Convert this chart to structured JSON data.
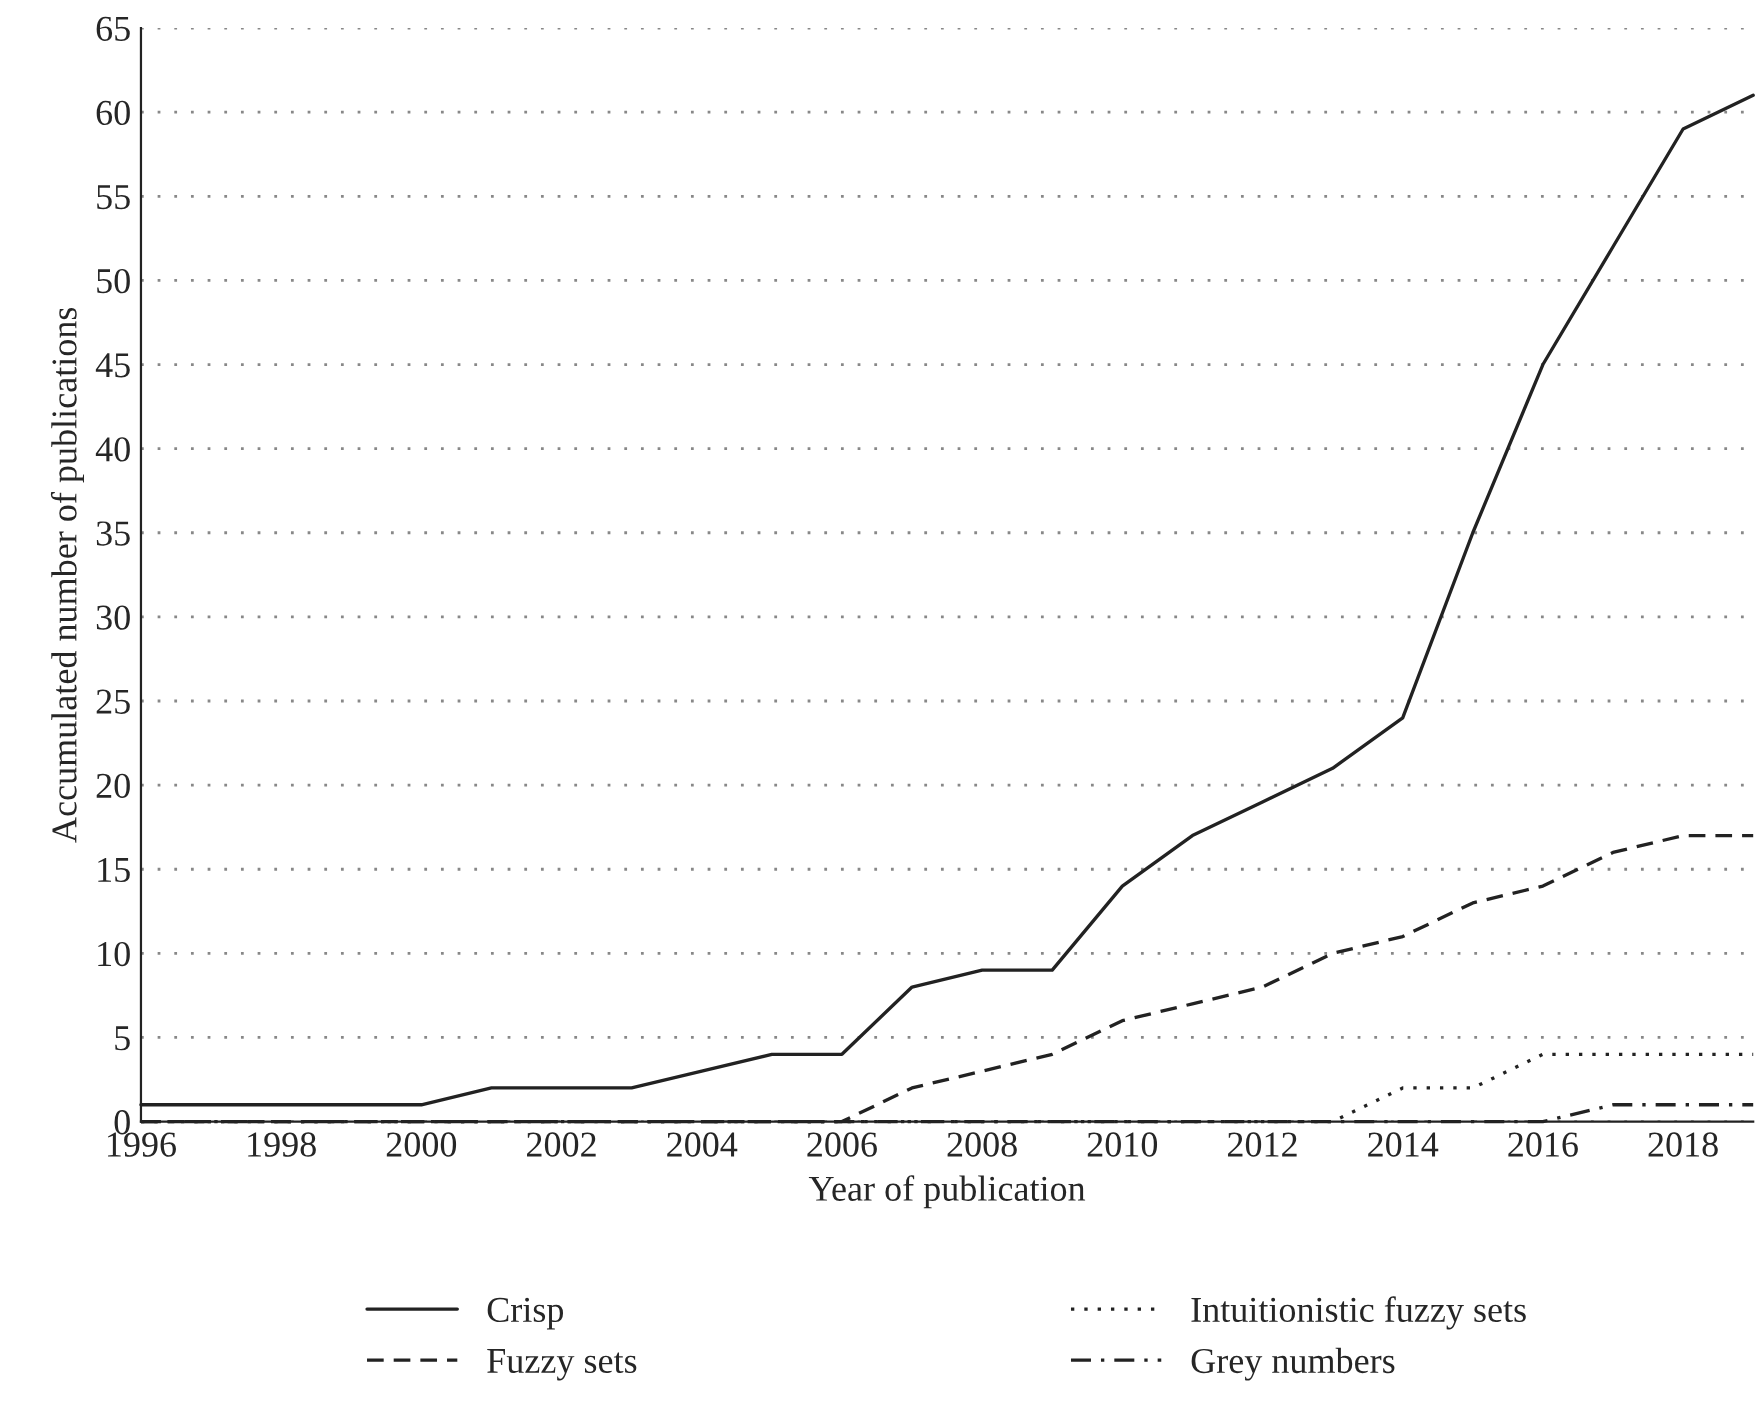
{
  "chart_data": {
    "type": "line",
    "xlabel": "Year of publication",
    "ylabel": "Accumulated number of publications",
    "x": [
      1996,
      1997,
      1998,
      1999,
      2000,
      2001,
      2002,
      2003,
      2004,
      2005,
      2006,
      2007,
      2008,
      2009,
      2010,
      2011,
      2012,
      2013,
      2014,
      2015,
      2016,
      2017,
      2018,
      2019
    ],
    "series": [
      {
        "name": "Crisp",
        "color": "#222222",
        "line_style": "solid",
        "values": [
          1,
          1,
          1,
          1,
          1,
          2,
          2,
          2,
          3,
          4,
          4,
          8,
          9,
          9,
          14,
          17,
          19,
          21,
          24,
          35,
          45,
          52,
          59,
          61
        ]
      },
      {
        "name": "Fuzzy sets",
        "color": "#222222",
        "line_style": "dashed",
        "values": [
          0,
          0,
          0,
          0,
          0,
          0,
          0,
          0,
          0,
          0,
          0,
          2,
          3,
          4,
          6,
          7,
          8,
          10,
          11,
          13,
          14,
          16,
          17,
          17
        ]
      },
      {
        "name": "Intuitionistic fuzzy sets",
        "color": "#222222",
        "line_style": "dotted",
        "values": [
          0,
          0,
          0,
          0,
          0,
          0,
          0,
          0,
          0,
          0,
          0,
          0,
          0,
          0,
          0,
          0,
          0,
          0,
          2,
          2,
          4,
          4,
          4,
          4
        ]
      },
      {
        "name": "Grey numbers",
        "color": "#222222",
        "line_style": "dashdot",
        "values": [
          0,
          0,
          0,
          0,
          0,
          0,
          0,
          0,
          0,
          0,
          0,
          0,
          0,
          0,
          0,
          0,
          0,
          0,
          0,
          0,
          0,
          1,
          1,
          1
        ]
      }
    ],
    "xlim": [
      1996,
      2019
    ],
    "xticks": [
      1996,
      1998,
      2000,
      2002,
      2004,
      2006,
      2008,
      2010,
      2012,
      2014,
      2016,
      2018
    ],
    "ylim": [
      0,
      65
    ],
    "yticks": [
      0,
      5,
      10,
      15,
      20,
      25,
      30,
      35,
      40,
      45,
      50,
      55,
      60,
      65
    ],
    "grid": "y",
    "legend": "bottom"
  }
}
